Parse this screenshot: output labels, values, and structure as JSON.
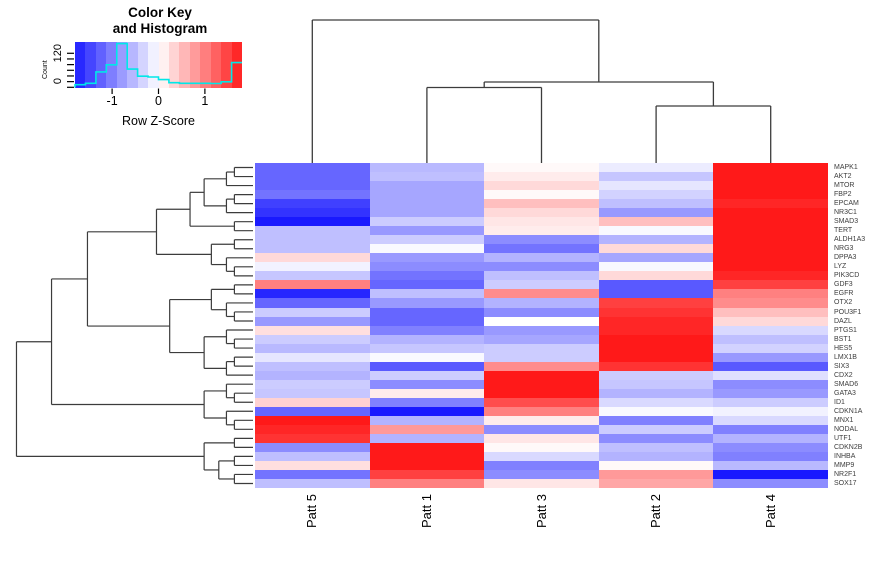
{
  "chart_data": {
    "type": "heatmap",
    "description": "Clustered gene-expression heatmap with row and column dendrograms",
    "color_key": {
      "title_line1": "Color Key",
      "title_line2": "and Histogram",
      "xlabel": "Row Z-Score",
      "ylabel": "Count",
      "x_ticks": [
        "-1",
        "0",
        "1"
      ],
      "x_tick_values": [
        -1,
        0,
        1
      ],
      "y_tick_labels": [
        "0",
        "120"
      ],
      "y_tick_values": [
        0,
        120
      ],
      "value_range": [
        -1.8,
        1.8
      ],
      "n_color_steps": 16,
      "histogram_counts": [
        10,
        15,
        55,
        80,
        155,
        65,
        40,
        37,
        28,
        17,
        15,
        15,
        15,
        14,
        20,
        88
      ],
      "histogram_color": "#00E8E8"
    },
    "colormap": {
      "low": "#0000FF",
      "mid": "#FFFFFF",
      "high": "#FF0000"
    },
    "columns": [
      "Patt 5",
      "Patt 1",
      "Patt 3",
      "Patt 2",
      "Patt 4"
    ],
    "rows": [
      "MAPK1",
      "AKT2",
      "MTOR",
      "FBP2",
      "EPCAM",
      "NR3C1",
      "SMAD3",
      "TERT",
      "ALDH1A3",
      "NRG3",
      "DPPA3",
      "LYZ",
      "PIK3CD",
      "GDF3",
      "EGFR",
      "OTX2",
      "POU3F1",
      "DAZL",
      "PTGS1",
      "BST1",
      "HES5",
      "LMX1B",
      "SIX3",
      "CDX2",
      "SMAD6",
      "GATA3",
      "ID1",
      "CDKN1A",
      "MNX1",
      "NODAL",
      "UTF1",
      "CDKN2B",
      "INHBA",
      "MMP9",
      "NR2F1",
      "SOX17"
    ],
    "values": [
      [
        -1.2,
        -0.55,
        0.05,
        -0.15,
        1.8
      ],
      [
        -1.2,
        -0.5,
        0.15,
        -0.45,
        1.8
      ],
      [
        -1.2,
        -0.7,
        0.3,
        -0.2,
        1.8
      ],
      [
        -1.1,
        -0.7,
        0.05,
        -0.35,
        1.8
      ],
      [
        -1.5,
        -0.7,
        0.5,
        -0.5,
        1.7
      ],
      [
        -1.6,
        -0.7,
        0.3,
        -0.8,
        1.8
      ],
      [
        -1.8,
        -0.4,
        0.2,
        0.5,
        1.8
      ],
      [
        -0.5,
        -0.8,
        0.15,
        -0.05,
        1.8
      ],
      [
        -0.5,
        -0.4,
        -0.9,
        -0.6,
        1.8
      ],
      [
        -0.5,
        -0.05,
        -1.1,
        0.3,
        1.8
      ],
      [
        0.3,
        -0.8,
        -0.6,
        -0.7,
        1.8
      ],
      [
        -0.1,
        -0.9,
        -0.9,
        -0.05,
        1.8
      ],
      [
        -0.45,
        -1.1,
        -0.5,
        0.3,
        1.7
      ],
      [
        1.0,
        -1.2,
        -0.4,
        -1.3,
        1.5
      ],
      [
        -1.7,
        -0.5,
        0.9,
        -1.3,
        1.0
      ],
      [
        -1.2,
        -0.8,
        -0.6,
        1.5,
        0.9
      ],
      [
        -0.4,
        -1.2,
        -0.9,
        1.6,
        0.5
      ],
      [
        -0.8,
        -1.2,
        0.0,
        1.7,
        0.3
      ],
      [
        0.25,
        -1.0,
        -0.8,
        1.7,
        -0.3
      ],
      [
        -0.4,
        -0.6,
        -0.7,
        1.8,
        -0.5
      ],
      [
        -0.55,
        -0.45,
        -0.4,
        1.8,
        -0.35
      ],
      [
        -0.2,
        -0.05,
        -0.4,
        1.8,
        -0.8
      ],
      [
        -0.5,
        -1.3,
        0.9,
        1.6,
        -1.3
      ],
      [
        -0.6,
        -0.4,
        1.8,
        -0.4,
        -0.25
      ],
      [
        -0.4,
        -0.9,
        1.8,
        -0.45,
        -0.9
      ],
      [
        -0.45,
        0.15,
        1.8,
        -0.6,
        -0.8
      ],
      [
        0.35,
        -1.0,
        1.4,
        -0.3,
        -0.4
      ],
      [
        -1.2,
        -1.8,
        1.0,
        -0.05,
        -0.1
      ],
      [
        1.8,
        -0.6,
        0.15,
        -1.0,
        -0.3
      ],
      [
        1.7,
        0.8,
        -0.9,
        -0.4,
        -1.0
      ],
      [
        1.6,
        -0.6,
        0.2,
        -0.9,
        -0.6
      ],
      [
        -0.9,
        1.8,
        0.05,
        -0.5,
        -0.9
      ],
      [
        -0.5,
        1.8,
        -0.3,
        -0.6,
        -1.0
      ],
      [
        0.25,
        1.8,
        -1.0,
        0.05,
        -0.55
      ],
      [
        -1.1,
        1.5,
        -0.9,
        0.8,
        -1.8
      ],
      [
        -0.5,
        1.0,
        0.2,
        0.7,
        -0.9
      ]
    ],
    "dendrograms": {
      "column_order": [
        "Patt 5",
        "Patt 1",
        "Patt 3",
        "Patt 2",
        "Patt 4"
      ],
      "column_topology": "Patt5 vs ((Patt1,Patt3),(Patt2,Patt4))",
      "row_leaf_count": 36
    },
    "line_color": "#3c3c3c"
  }
}
